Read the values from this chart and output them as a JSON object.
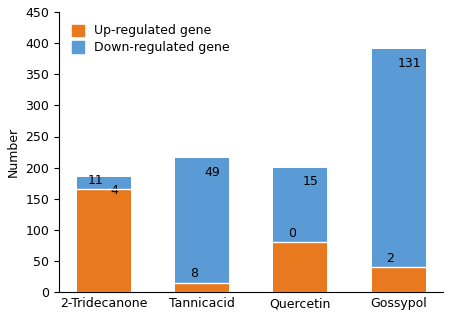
{
  "categories": [
    "2-Tridecanone",
    "Tannicacid",
    "Quercetin",
    "Gossypol"
  ],
  "up_regulated": [
    165,
    15,
    80,
    40
  ],
  "down_regulated": [
    185,
    215,
    200,
    390
  ],
  "up_labels": [
    "11",
    "8",
    "0",
    "2"
  ],
  "down_labels": [
    "4",
    "49",
    "15",
    "131"
  ],
  "up_color": "#E8791E",
  "down_color": "#5B9BD5",
  "ylabel": "Number",
  "ylim": [
    0,
    450
  ],
  "yticks": [
    0,
    50,
    100,
    150,
    200,
    250,
    300,
    350,
    400,
    450
  ],
  "legend_up": "Up-regulated gene",
  "legend_down": "Down-regulated gene",
  "bar_width": 0.55,
  "label_fontsize": 9,
  "tick_fontsize": 9,
  "legend_fontsize": 9
}
